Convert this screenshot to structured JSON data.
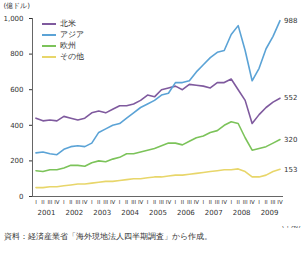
{
  "chart_data": {
    "type": "line",
    "y_label": "(億ドル)",
    "x_label": "(年期)",
    "caption": "資料：経済産業省「海外現地法人四半期調査」から作成。",
    "categories": [
      "I",
      "II",
      "III",
      "IV",
      "I",
      "II",
      "III",
      "IV",
      "I",
      "II",
      "III",
      "IV",
      "I",
      "II",
      "III",
      "IV",
      "I",
      "II",
      "III",
      "IV",
      "I",
      "II",
      "III",
      "IV",
      "I",
      "II",
      "III",
      "IV",
      "I",
      "II",
      "III",
      "IV",
      "I",
      "II",
      "III",
      "IV"
    ],
    "year_labels": [
      "2001",
      "2002",
      "2003",
      "2004",
      "2005",
      "2006",
      "2007",
      "2008",
      "2009"
    ],
    "series": [
      {
        "name": "北米",
        "color": "#7f5a9e",
        "values": [
          440,
          425,
          430,
          425,
          450,
          440,
          430,
          440,
          470,
          480,
          470,
          490,
          510,
          510,
          520,
          540,
          570,
          560,
          600,
          610,
          620,
          600,
          630,
          625,
          620,
          610,
          640,
          640,
          660,
          600,
          540,
          410,
          460,
          500,
          530,
          552
        ]
      },
      {
        "name": "アジア",
        "color": "#5ba3d6",
        "values": [
          245,
          250,
          240,
          235,
          265,
          280,
          285,
          280,
          300,
          360,
          380,
          400,
          410,
          440,
          470,
          500,
          520,
          540,
          570,
          580,
          640,
          640,
          650,
          700,
          740,
          780,
          810,
          820,
          910,
          960,
          820,
          650,
          720,
          830,
          900,
          988
        ]
      },
      {
        "name": "欧州",
        "color": "#7cc35a",
        "values": [
          145,
          140,
          150,
          150,
          160,
          175,
          175,
          170,
          190,
          200,
          195,
          210,
          220,
          240,
          240,
          250,
          260,
          270,
          285,
          300,
          300,
          290,
          310,
          330,
          340,
          360,
          370,
          400,
          420,
          410,
          330,
          260,
          270,
          280,
          300,
          320
        ]
      },
      {
        "name": "その他",
        "color": "#e8d66a",
        "values": [
          50,
          50,
          55,
          55,
          60,
          65,
          70,
          70,
          75,
          80,
          85,
          85,
          90,
          95,
          100,
          100,
          105,
          110,
          110,
          115,
          120,
          120,
          125,
          130,
          135,
          140,
          145,
          150,
          150,
          155,
          140,
          110,
          110,
          120,
          140,
          153
        ]
      }
    ],
    "annotations": [
      {
        "series": "アジア",
        "text": "988"
      },
      {
        "series": "北米",
        "text": "552"
      },
      {
        "series": "欧州",
        "text": "320"
      },
      {
        "series": "その他",
        "text": "153"
      }
    ],
    "ylim": [
      0,
      1000
    ],
    "yticks": [
      0,
      200,
      400,
      600,
      800,
      {
        "value": 1000,
        "label": "1,000"
      }
    ],
    "grid": false,
    "legend": "top-left"
  }
}
